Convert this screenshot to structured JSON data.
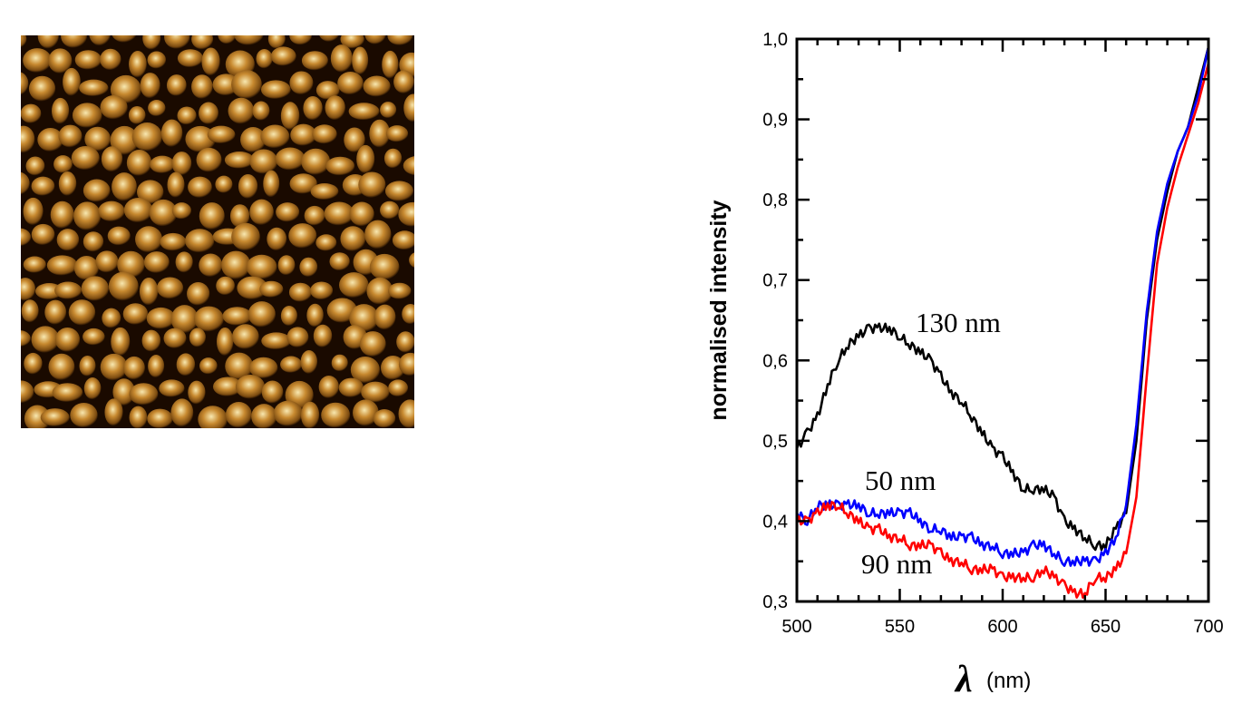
{
  "figure": {
    "afm_image": {
      "description_icon": "afm-topography-image",
      "colors": [
        "#1a0a00",
        "#7a4a10",
        "#c88a30",
        "#f8e8b0"
      ]
    }
  },
  "chart_data": {
    "type": "line",
    "xlabel_symbol": "λ",
    "xlabel_unit": "(nm)",
    "ylabel": "normalised intensity",
    "xlim": [
      500,
      700
    ],
    "ylim": [
      0.3,
      1.0
    ],
    "x_ticks": [
      "500",
      "550",
      "600",
      "650",
      "700"
    ],
    "y_ticks": [
      "0,3",
      "0,4",
      "0,5",
      "0,6",
      "0,7",
      "0,8",
      "0,9",
      "1,0"
    ],
    "grid": false,
    "x": [
      500,
      505,
      510,
      515,
      520,
      525,
      530,
      535,
      540,
      545,
      550,
      555,
      560,
      565,
      570,
      575,
      580,
      585,
      590,
      595,
      600,
      605,
      610,
      615,
      620,
      625,
      630,
      635,
      640,
      645,
      650,
      655,
      660,
      665,
      670,
      675,
      680,
      685,
      690,
      695,
      700
    ],
    "series": [
      {
        "name": "130 nm",
        "color": "#000000",
        "values": [
          0.49,
          0.51,
          0.53,
          0.57,
          0.6,
          0.62,
          0.63,
          0.64,
          0.64,
          0.64,
          0.63,
          0.62,
          0.61,
          0.6,
          0.58,
          0.56,
          0.55,
          0.53,
          0.51,
          0.49,
          0.48,
          0.46,
          0.44,
          0.44,
          0.44,
          0.43,
          0.4,
          0.39,
          0.38,
          0.37,
          0.37,
          0.39,
          0.41,
          0.5,
          0.65,
          0.75,
          0.81,
          0.86,
          0.89,
          0.94,
          0.99
        ]
      },
      {
        "name": "50 nm",
        "color": "#0000ff",
        "values": [
          0.41,
          0.4,
          0.42,
          0.42,
          0.42,
          0.42,
          0.42,
          0.41,
          0.41,
          0.41,
          0.41,
          0.41,
          0.4,
          0.39,
          0.39,
          0.38,
          0.38,
          0.38,
          0.37,
          0.37,
          0.36,
          0.36,
          0.36,
          0.37,
          0.37,
          0.36,
          0.35,
          0.35,
          0.35,
          0.35,
          0.36,
          0.38,
          0.42,
          0.52,
          0.66,
          0.76,
          0.82,
          0.86,
          0.89,
          0.93,
          0.99
        ]
      },
      {
        "name": "90 nm",
        "color": "#ff0000",
        "values": [
          0.4,
          0.4,
          0.41,
          0.42,
          0.42,
          0.41,
          0.4,
          0.39,
          0.39,
          0.38,
          0.38,
          0.37,
          0.37,
          0.37,
          0.36,
          0.35,
          0.35,
          0.34,
          0.34,
          0.34,
          0.33,
          0.33,
          0.33,
          0.33,
          0.34,
          0.33,
          0.32,
          0.31,
          0.31,
          0.33,
          0.33,
          0.34,
          0.36,
          0.43,
          0.58,
          0.72,
          0.79,
          0.84,
          0.88,
          0.92,
          0.97
        ]
      }
    ]
  }
}
